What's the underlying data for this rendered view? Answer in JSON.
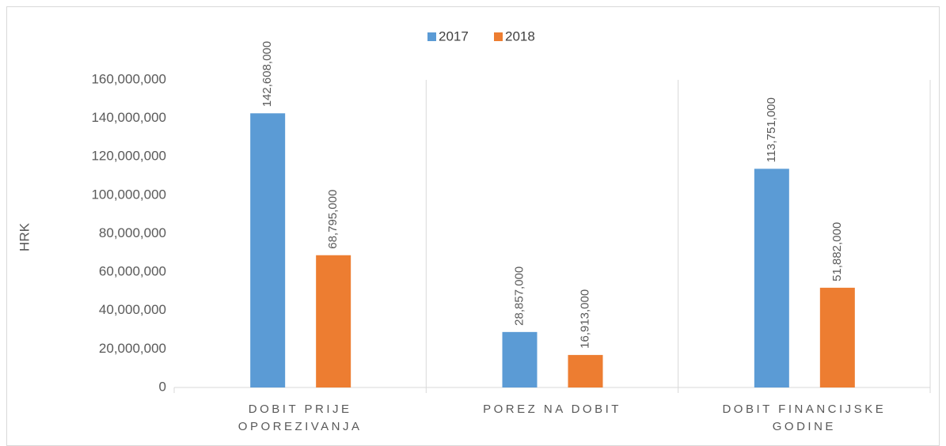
{
  "chart_data": {
    "type": "bar",
    "y_label": "HRK",
    "categories": [
      "DOBIT PRIJE OPOREZIVANJA",
      "POREZ NA DOBIT",
      "DOBIT FINANCIJSKE GODINE"
    ],
    "series": [
      {
        "name": "2017",
        "color": "#5b9bd5",
        "values": [
          142608000,
          28857000,
          113751000
        ],
        "value_labels": [
          "142,608,000",
          "28,857,000",
          "113,751,000"
        ]
      },
      {
        "name": "2018",
        "color": "#ed7d31",
        "values": [
          68795000,
          16913000,
          51882000
        ],
        "value_labels": [
          "68,795,000",
          "16,913,000",
          "51,882,000"
        ]
      }
    ],
    "ylim": [
      0,
      160000000
    ],
    "yticks": [
      0,
      {
        "value": 20000000,
        "label": "20,000,000"
      },
      {
        "value": 40000000,
        "label": "40,000,000"
      },
      {
        "value": 60000000,
        "label": "60,000,000"
      },
      {
        "value": 80000000,
        "label": "80,000,000"
      },
      {
        "value": 100000000,
        "label": "100,000,000"
      },
      {
        "value": 120000000,
        "label": "120,000,000"
      },
      {
        "value": 140000000,
        "label": "140,000,000"
      },
      {
        "value": 160000000,
        "label": "160,000,000"
      }
    ],
    "legend": "top"
  }
}
